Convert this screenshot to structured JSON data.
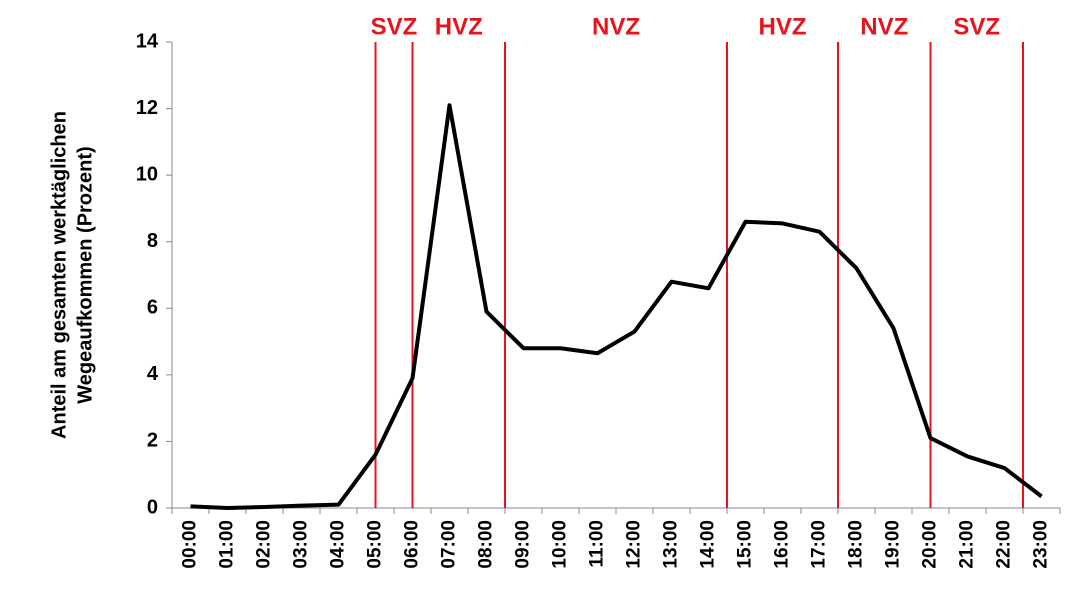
{
  "chart_data": {
    "type": "line",
    "y_label": [
      "Anteil am gesamten werktäglichen",
      "Wegeaufkommen (Prozent)"
    ],
    "categories": [
      "00:00",
      "01:00",
      "02:00",
      "03:00",
      "04:00",
      "05:00",
      "06:00",
      "07:00",
      "08:00",
      "09:00",
      "10:00",
      "11:00",
      "12:00",
      "13:00",
      "14:00",
      "15:00",
      "16:00",
      "17:00",
      "18:00",
      "19:00",
      "20:00",
      "21:00",
      "22:00",
      "23:00"
    ],
    "values": [
      0.05,
      0.0,
      0.03,
      0.07,
      0.1,
      1.6,
      3.9,
      12.1,
      5.9,
      4.8,
      4.8,
      4.65,
      5.3,
      6.8,
      6.6,
      8.6,
      8.55,
      8.3,
      7.2,
      5.4,
      2.1,
      1.55,
      1.2,
      0.35
    ],
    "color": "#000000",
    "ylim": [
      0,
      14
    ],
    "yticks": [
      0,
      2,
      4,
      6,
      8,
      10,
      12,
      14
    ],
    "grid": false,
    "period_color": "#e8141c",
    "periods": [
      {
        "label": "SVZ",
        "start": 5,
        "end": 6
      },
      {
        "label": "HVZ",
        "start": 6,
        "end": 8.5
      },
      {
        "label": "NVZ",
        "start": 8.5,
        "end": 14.5
      },
      {
        "label": "HVZ",
        "start": 14.5,
        "end": 17.5
      },
      {
        "label": "NVZ",
        "start": 17.5,
        "end": 20
      },
      {
        "label": "SVZ",
        "start": 20,
        "end": 22.5
      }
    ]
  }
}
